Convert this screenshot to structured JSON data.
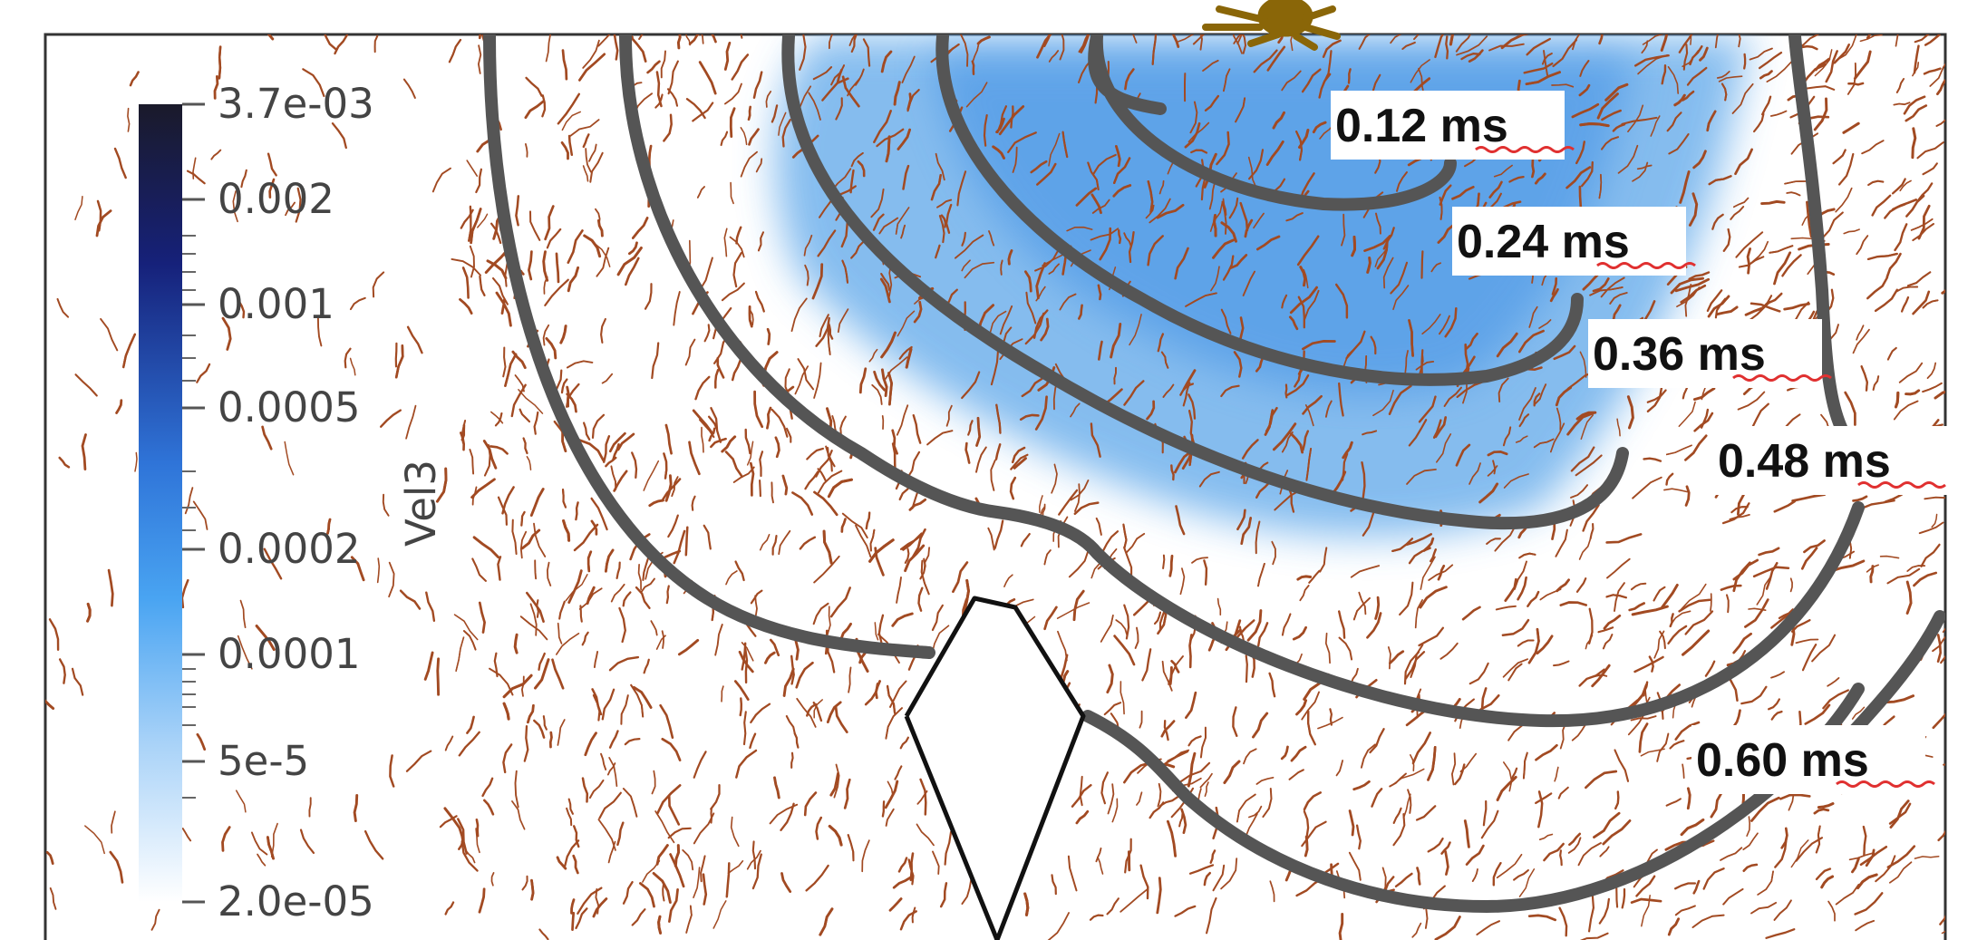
{
  "figure": {
    "colorbar": {
      "title": "Vel3",
      "ticks": [
        "3.7e-03",
        "0.002",
        "0.001",
        "0.0005",
        "0.0002",
        "0.0001",
        "5e-5",
        "2.0e-05"
      ],
      "colors": [
        "#1a1a2a",
        "#16217a",
        "#2f74d8",
        "#49a4f2",
        "#ffffff"
      ]
    },
    "isochrones": [
      "0.12 ms",
      "0.24 ms",
      "0.36 ms",
      "0.48 ms",
      "0.60 ms"
    ],
    "colors": {
      "contour": "#555555",
      "fibers": "#a24a22",
      "activation_blue": "#6fb1ec",
      "frame": "#333333",
      "spell_underline": "#e03030",
      "neuron": "#8a6608"
    },
    "icons": [
      "neuron-icon",
      "electrode-outline"
    ]
  }
}
